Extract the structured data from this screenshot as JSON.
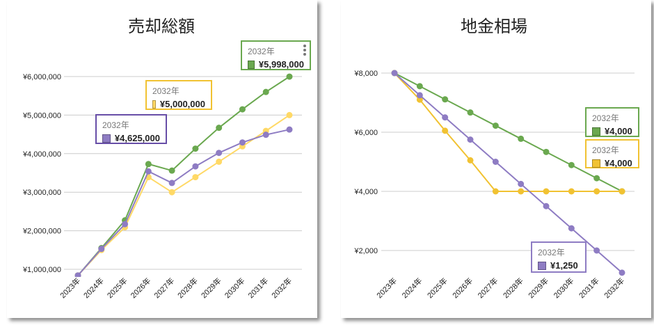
{
  "chart_data": [
    {
      "type": "line",
      "title": "売却総額",
      "categories": [
        "2023年",
        "2024年",
        "2025年",
        "2026年",
        "2027年",
        "2028年",
        "2029年",
        "2030年",
        "2031年",
        "2032年"
      ],
      "ylim": [
        840000,
        6100000
      ],
      "yticks": [
        1000000,
        2000000,
        3000000,
        4000000,
        5000000,
        6000000
      ],
      "ytick_labels": [
        "¥1,000,000",
        "¥2,000,000",
        "¥3,000,000",
        "¥4,000,000",
        "¥5,000,000",
        "¥6,000,000"
      ],
      "grid": true,
      "series": [
        {
          "color": "#6aa84f",
          "values": [
            840000,
            1550000,
            2270000,
            3730000,
            3560000,
            4130000,
            4670000,
            5150000,
            5600000,
            5998000
          ]
        },
        {
          "color": "#ffd966",
          "values": [
            840000,
            1500000,
            2090000,
            3390000,
            3000000,
            3390000,
            3790000,
            4190000,
            4590000,
            5000000
          ]
        },
        {
          "color": "#8e7cc3",
          "values": [
            840000,
            1530000,
            2170000,
            3540000,
            3240000,
            3670000,
            4020000,
            4290000,
            4490000,
            4625000
          ]
        }
      ],
      "tooltips": [
        {
          "year": "2032年",
          "value": "¥5,998,000",
          "color": "#6aa84f",
          "border": "#6aa84f",
          "menu_icon": "more-vert-icon"
        },
        {
          "year": "2032年",
          "value": "¥5,000,000",
          "color": "#ffd966",
          "border": "#f1c232"
        },
        {
          "year": "2032年",
          "value": "¥4,625,000",
          "color": "#8e7cc3",
          "border": "#674ea7"
        }
      ]
    },
    {
      "type": "line",
      "title": "地金相場",
      "categories": [
        "2023年",
        "2024年",
        "2025年",
        "2026年",
        "2027年",
        "2028年",
        "2029年",
        "2030年",
        "2031年",
        "2032年"
      ],
      "ylim": [
        1250,
        8000
      ],
      "yticks": [
        2000,
        4000,
        6000,
        8000
      ],
      "ytick_labels": [
        "¥2,000",
        "¥4,000",
        "¥6,000",
        "¥8,000"
      ],
      "grid": true,
      "series": [
        {
          "color": "#6aa84f",
          "values": [
            8000,
            7556,
            7111,
            6667,
            6222,
            5778,
            5333,
            4889,
            4444,
            4000
          ]
        },
        {
          "color": "#f1c232",
          "values": [
            8000,
            7100,
            6050,
            5050,
            4000,
            4000,
            4000,
            4000,
            4000,
            4000
          ]
        },
        {
          "color": "#8e7cc3",
          "values": [
            8000,
            7250,
            6500,
            5750,
            5000,
            4250,
            3500,
            2750,
            2000,
            1250
          ]
        }
      ],
      "tooltips": [
        {
          "year": "2032年",
          "value": "¥4,000",
          "color": "#6aa84f",
          "border": "#6aa84f"
        },
        {
          "year": "2032年",
          "value": "¥4,000",
          "color": "#f1c232",
          "border": "#f1c232"
        },
        {
          "year": "2032年",
          "value": "¥1,250",
          "color": "#8e7cc3",
          "border": "#8e7cc3"
        }
      ]
    }
  ]
}
